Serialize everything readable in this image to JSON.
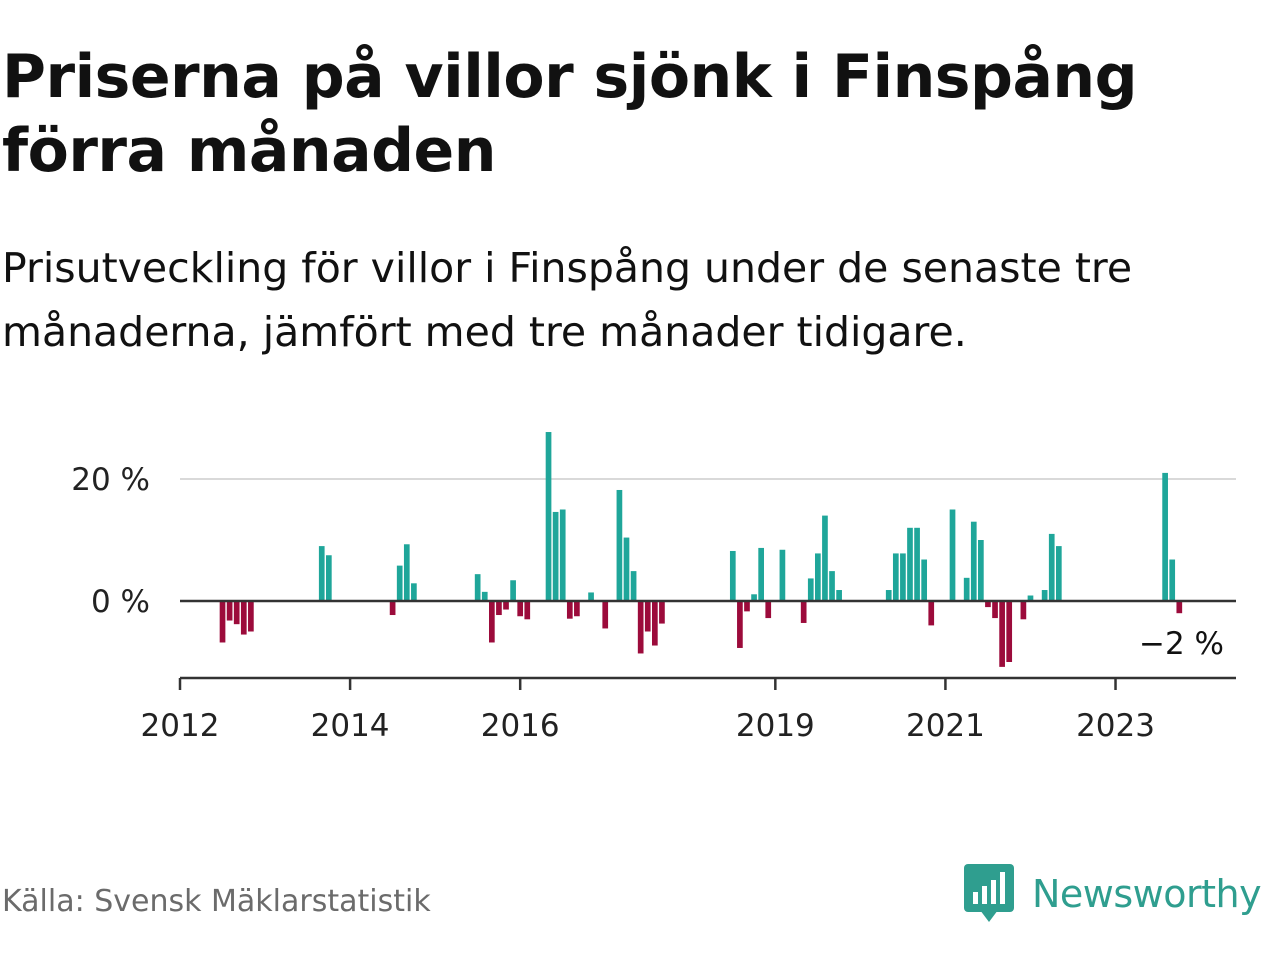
{
  "title": "Priserna på villor sjönk i Finspång förra månaden",
  "subtitle": "Prisutveckling för villor i Finspång under de senaste tre månaderna, jämfört med tre månader tidigare.",
  "source": "Källa: Svensk Mäklarstatistik",
  "brand": {
    "name": "Newsworthy",
    "icon": "newsworthy-logo-icon",
    "color": "#2f9e8f"
  },
  "chart_data": {
    "type": "bar",
    "title": "Priserna på villor sjönk i Finspång förra månaden",
    "subtitle": "Prisutveckling för villor i Finspång under de senaste tre månaderna, jämfört med tre månader tidigare.",
    "xlabel": "",
    "ylabel": "",
    "ylim": [
      -12,
      28
    ],
    "x_range": [
      "2012-01",
      "2024-06"
    ],
    "y_ticks": [
      0,
      20
    ],
    "y_tick_labels": [
      "0 %",
      "20 %"
    ],
    "x_ticks": [
      "2012-01",
      "2014-01",
      "2016-01",
      "2019-01",
      "2021-01",
      "2023-01"
    ],
    "x_tick_labels": [
      "2012",
      "2014",
      "2016",
      "2019",
      "2021",
      "2023"
    ],
    "grid": true,
    "colors": {
      "positive": "#1fa69a",
      "negative": "#9c0b3b"
    },
    "last_value_label": "−2 %",
    "months": [
      "2012-07",
      "2012-08",
      "2012-09",
      "2012-10",
      "2012-11",
      "2013-09",
      "2013-10",
      "2014-07",
      "2014-08",
      "2014-09",
      "2014-10",
      "2015-07",
      "2015-08",
      "2015-09",
      "2015-10",
      "2015-11",
      "2015-12",
      "2016-01",
      "2016-02",
      "2016-05",
      "2016-06",
      "2016-07",
      "2016-08",
      "2016-09",
      "2016-11",
      "2017-01",
      "2017-03",
      "2017-04",
      "2017-05",
      "2017-06",
      "2017-07",
      "2017-08",
      "2017-09",
      "2018-07",
      "2018-08",
      "2018-09",
      "2018-10",
      "2018-11",
      "2018-12",
      "2019-02",
      "2019-05",
      "2019-06",
      "2019-07",
      "2019-08",
      "2019-09",
      "2019-10",
      "2020-05",
      "2020-06",
      "2020-07",
      "2020-08",
      "2020-09",
      "2020-10",
      "2020-11",
      "2021-02",
      "2021-04",
      "2021-05",
      "2021-06",
      "2021-07",
      "2021-08",
      "2021-09",
      "2021-10",
      "2021-12",
      "2022-01",
      "2022-02",
      "2022-03",
      "2022-04",
      "2022-05",
      "2023-08",
      "2023-09",
      "2023-10"
    ],
    "values": [
      -6.8,
      -3.2,
      -3.8,
      -5.5,
      -5.0,
      9.0,
      7.5,
      -2.3,
      5.8,
      9.3,
      2.9,
      4.4,
      1.5,
      -6.8,
      -2.3,
      -1.4,
      3.4,
      -2.5,
      -3.0,
      27.7,
      14.6,
      15.0,
      -2.9,
      -2.5,
      1.4,
      -4.5,
      18.2,
      10.4,
      4.9,
      -8.6,
      -5.0,
      -7.3,
      -3.7,
      8.2,
      -7.7,
      -1.7,
      1.1,
      8.7,
      -2.8,
      8.4,
      -3.6,
      3.7,
      7.8,
      14.0,
      4.9,
      1.8,
      1.8,
      7.8,
      7.8,
      12.0,
      12.0,
      6.8,
      -4.0,
      15.0,
      3.8,
      13.0,
      10.0,
      -1.0,
      -2.8,
      -10.8,
      -10.0,
      -3.0,
      0.9,
      0.0,
      1.8,
      11.0,
      9.0,
      21.0,
      6.8,
      -2.0
    ]
  }
}
